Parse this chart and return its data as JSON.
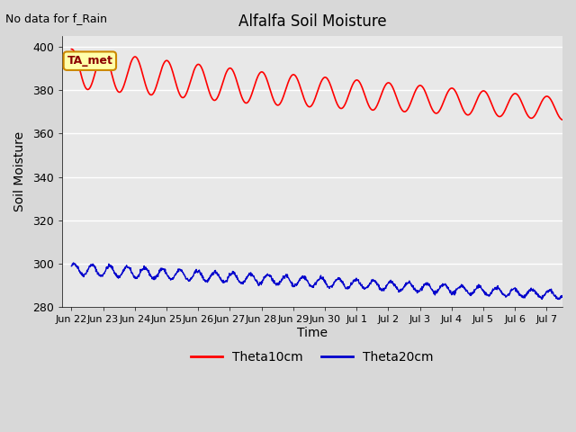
{
  "title": "Alfalfa Soil Moisture",
  "no_data_text": "No data for f_Rain",
  "ylabel": "Soil Moisture",
  "xlabel": "Time",
  "ylim": [
    280,
    405
  ],
  "yticks": [
    280,
    300,
    320,
    340,
    360,
    380,
    400
  ],
  "background_color": "#d8d8d8",
  "plot_bg_color": "#e8e8e8",
  "line1_color": "#ff0000",
  "line2_color": "#0000cc",
  "line1_label": "Theta10cm",
  "line2_label": "Theta20cm",
  "legend_label": "TA_met",
  "legend_bg": "#ffffaa",
  "legend_border": "#cc8800",
  "x_tick_labels": [
    "Jun 22",
    "Jun 23",
    "Jun 24",
    "Jun 25",
    "Jun 26",
    "Jun 27",
    "Jun 28",
    "Jun 29",
    "Jun 30",
    "Jul 1",
    "Jul 2",
    "Jul 3",
    "Jul 4",
    "Jul 5",
    "Jul 6",
    "Jul 7"
  ],
  "n_days": 15.5
}
